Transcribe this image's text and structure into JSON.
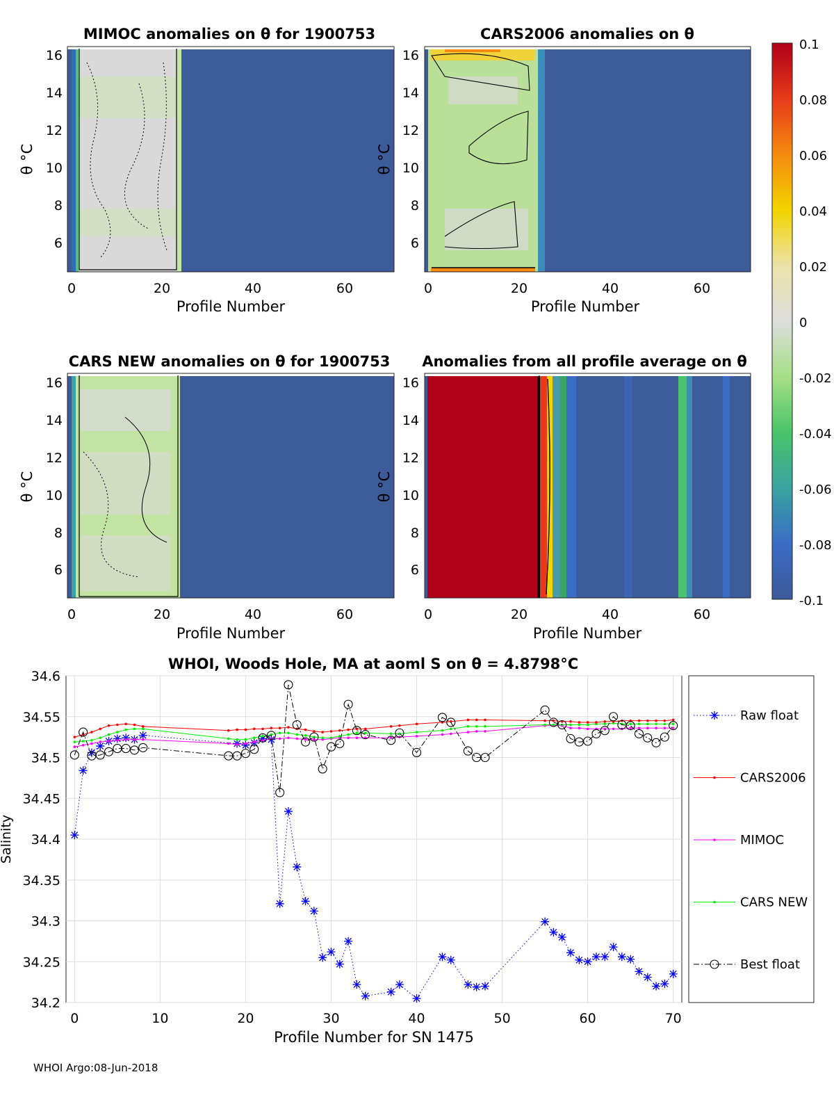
{
  "footer": "WHOI Argo:08-Jun-2018",
  "colorbar": {
    "ticks": [
      "0.1",
      "0.08",
      "0.06",
      "0.04",
      "0.02",
      "0",
      "-0.02",
      "-0.04",
      "-0.06",
      "-0.08",
      "-0.1"
    ],
    "range": [
      -0.1,
      0.1
    ]
  },
  "panels": [
    {
      "id": "mimoc",
      "title": "MIMOC anomalies on θ  for 1900753",
      "xlabel": "Profile Number",
      "ylabel": "θ °C",
      "xticks": [
        "0",
        "20",
        "40",
        "60"
      ],
      "yticks": [
        "16",
        "14",
        "12",
        "10",
        "8",
        "6"
      ],
      "xlim": [
        -0.5,
        69.5
      ],
      "ylim": [
        4.5,
        16.5
      ],
      "data_until": 23,
      "fill": "grey"
    },
    {
      "id": "cars2006",
      "title": "CARS2006 anomalies on θ",
      "xlabel": "Profile Number",
      "ylabel": "θ °C",
      "xticks": [
        "0",
        "20",
        "40",
        "60"
      ],
      "yticks": [
        "16",
        "14",
        "12",
        "10",
        "8",
        "6"
      ],
      "xlim": [
        -0.5,
        69.5
      ],
      "ylim": [
        4.5,
        16.5
      ],
      "data_until": 23,
      "fill": "lightgreen"
    },
    {
      "id": "carsnew",
      "title": "CARS NEW anomalies on θ for 1900753",
      "xlabel": "Profile Number",
      "ylabel": "θ °C",
      "xticks": [
        "0",
        "20",
        "40",
        "60"
      ],
      "yticks": [
        "16",
        "14",
        "12",
        "10",
        "8",
        "6"
      ],
      "xlim": [
        -0.5,
        69.5
      ],
      "ylim": [
        4.5,
        16.5
      ],
      "data_until": 23,
      "fill": "lightgreen"
    },
    {
      "id": "allavg",
      "title": "Anomalies from all profile average on θ",
      "xlabel": "Profile Number",
      "ylabel": "θ °C",
      "xticks": [
        "0",
        "20",
        "40",
        "60"
      ],
      "yticks": [
        "16",
        "14",
        "12",
        "10",
        "8",
        "6"
      ],
      "xlim": [
        -0.5,
        69.5
      ],
      "ylim": [
        4.5,
        16.5
      ],
      "data_until": 23,
      "fill": "red"
    }
  ],
  "chart_data": {
    "type": "line",
    "title": "WHOI, Woods Hole, MA at aoml S on θ = 4.8798°C",
    "xlabel": "Profile Number for SN 1475",
    "ylabel": "Salinity",
    "xlim": [
      -1,
      71
    ],
    "ylim": [
      34.2,
      34.6
    ],
    "xticks": [
      "0",
      "10",
      "20",
      "30",
      "40",
      "50",
      "60",
      "70"
    ],
    "yticks": [
      "34.6",
      "34.55",
      "34.5",
      "34.45",
      "34.4",
      "34.35",
      "34.3",
      "34.25",
      "34.2"
    ],
    "grid": true,
    "legend": "right",
    "series": [
      {
        "name": "Raw float",
        "color": "#0000ff",
        "style": "dotted",
        "marker": "star",
        "x": [
          0,
          1,
          2,
          3,
          4,
          5,
          6,
          7,
          8,
          19,
          20,
          21,
          22,
          23,
          24,
          25,
          26,
          27,
          28,
          29,
          30,
          31,
          32,
          33,
          34,
          37,
          38,
          40,
          43,
          44,
          46,
          47,
          48,
          55,
          56,
          57,
          58,
          59,
          60,
          61,
          62,
          63,
          64,
          65,
          66,
          67,
          68,
          69,
          70
        ],
        "y": [
          34.405,
          34.484,
          34.506,
          34.514,
          34.52,
          34.523,
          34.524,
          34.522,
          34.527,
          34.517,
          34.515,
          34.518,
          34.523,
          34.522,
          34.321,
          34.434,
          34.366,
          34.324,
          34.312,
          34.255,
          34.262,
          34.247,
          34.275,
          34.222,
          34.208,
          34.213,
          34.222,
          34.205,
          34.256,
          34.252,
          34.222,
          34.219,
          34.22,
          34.299,
          34.286,
          34.28,
          34.261,
          34.252,
          34.25,
          34.256,
          34.256,
          34.268,
          34.256,
          34.253,
          34.238,
          34.231,
          34.22,
          34.223,
          34.235
        ]
      },
      {
        "name": "CARS2006",
        "color": "#ff0000",
        "style": "solid",
        "marker": "dot",
        "x": [
          0,
          1,
          2,
          3,
          4,
          5,
          6,
          7,
          8,
          18,
          19,
          20,
          21,
          22,
          23,
          24,
          25,
          26,
          27,
          28,
          29,
          30,
          31,
          32,
          33,
          34,
          37,
          38,
          40,
          43,
          44,
          46,
          47,
          48,
          55,
          56,
          57,
          58,
          59,
          60,
          61,
          62,
          63,
          64,
          65,
          66,
          67,
          68,
          69,
          70
        ],
        "y": [
          34.525,
          34.528,
          34.531,
          34.535,
          34.539,
          34.54,
          34.541,
          34.54,
          34.538,
          34.533,
          34.534,
          34.534,
          34.535,
          34.535,
          34.536,
          34.536,
          34.537,
          34.535,
          34.534,
          34.532,
          34.531,
          34.532,
          34.533,
          34.534,
          34.535,
          34.535,
          34.538,
          34.539,
          34.541,
          34.543,
          34.544,
          34.546,
          34.546,
          34.546,
          34.545,
          34.545,
          34.544,
          34.544,
          34.543,
          34.543,
          34.543,
          34.544,
          34.544,
          34.545,
          34.545,
          34.545,
          34.545,
          34.545,
          34.545,
          34.546
        ]
      },
      {
        "name": "MIMOC",
        "color": "#ff00ff",
        "style": "solid",
        "marker": "dot",
        "x": [
          0,
          1,
          2,
          3,
          4,
          5,
          6,
          7,
          8,
          18,
          19,
          20,
          21,
          22,
          23,
          24,
          25,
          26,
          27,
          28,
          29,
          30,
          31,
          32,
          33,
          34,
          37,
          38,
          40,
          43,
          44,
          46,
          47,
          48,
          55,
          56,
          57,
          58,
          59,
          60,
          61,
          62,
          63,
          64,
          65,
          66,
          67,
          68,
          69,
          70
        ],
        "y": [
          34.513,
          34.515,
          34.517,
          34.519,
          34.52,
          34.521,
          34.522,
          34.522,
          34.522,
          34.517,
          34.516,
          34.517,
          34.519,
          34.521,
          34.523,
          34.523,
          34.524,
          34.523,
          34.522,
          34.522,
          34.522,
          34.523,
          34.524,
          34.524,
          34.524,
          34.524,
          34.524,
          34.525,
          34.526,
          34.528,
          34.529,
          34.531,
          34.532,
          34.532,
          34.539,
          34.539,
          34.539,
          34.536,
          34.536,
          34.535,
          34.535,
          34.535,
          34.535,
          34.535,
          34.536,
          34.536,
          34.536,
          34.536,
          34.536,
          34.536
        ]
      },
      {
        "name": "CARS NEW",
        "color": "#00ee00",
        "style": "solid",
        "marker": "dot",
        "x": [
          0,
          1,
          2,
          3,
          4,
          5,
          6,
          7,
          8,
          18,
          19,
          20,
          21,
          22,
          23,
          24,
          25,
          26,
          27,
          28,
          29,
          30,
          31,
          32,
          33,
          34,
          37,
          38,
          40,
          43,
          44,
          46,
          47,
          48,
          55,
          56,
          57,
          58,
          59,
          60,
          61,
          62,
          63,
          64,
          65,
          66,
          67,
          68,
          69,
          70
        ],
        "y": [
          34.519,
          34.52,
          34.521,
          34.524,
          34.528,
          34.531,
          34.534,
          34.535,
          34.535,
          34.523,
          34.522,
          34.522,
          34.524,
          34.526,
          34.528,
          34.53,
          34.53,
          34.528,
          34.527,
          34.525,
          34.524,
          34.524,
          34.526,
          34.528,
          34.53,
          34.53,
          34.529,
          34.529,
          34.531,
          34.533,
          34.535,
          34.538,
          34.538,
          34.538,
          34.54,
          34.54,
          34.54,
          34.54,
          34.54,
          34.54,
          34.541,
          34.541,
          34.542,
          34.541,
          34.541,
          34.541,
          34.541,
          34.541,
          34.541,
          34.541
        ]
      },
      {
        "name": "Best float",
        "color": "#000000",
        "style": "dashdot",
        "marker": "circle",
        "x": [
          0,
          1,
          2,
          3,
          4,
          5,
          6,
          7,
          8,
          18,
          19,
          20,
          21,
          22,
          23,
          24,
          25,
          26,
          27,
          28,
          29,
          30,
          31,
          32,
          33,
          34,
          37,
          38,
          40,
          43,
          44,
          46,
          47,
          48,
          55,
          56,
          57,
          58,
          59,
          60,
          61,
          62,
          63,
          64,
          65,
          66,
          67,
          68,
          69,
          70
        ],
        "y": [
          34.503,
          34.531,
          34.502,
          34.503,
          34.507,
          34.511,
          34.511,
          34.509,
          34.512,
          34.502,
          34.502,
          34.505,
          34.51,
          34.524,
          34.527,
          34.457,
          34.589,
          34.54,
          34.519,
          34.525,
          34.486,
          34.513,
          34.517,
          34.565,
          34.533,
          34.528,
          34.521,
          34.53,
          34.506,
          34.549,
          34.543,
          34.508,
          34.5,
          34.5,
          34.558,
          34.543,
          34.54,
          34.523,
          34.519,
          34.52,
          34.529,
          34.533,
          34.55,
          34.54,
          34.539,
          34.529,
          34.524,
          34.518,
          34.525,
          34.539
        ]
      }
    ]
  }
}
